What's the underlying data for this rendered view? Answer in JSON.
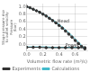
{
  "chart_data": {
    "type": "line",
    "xlabel": "Volumetric flow rate (m³/s)",
    "ylabel": "Stage pressure rise\nto outlet velocity\nPressure\n(bar)",
    "xlim": [
      0.0,
      0.75
    ],
    "ylim": [
      -0.18,
      1.08
    ],
    "xticks": [
      {
        "value": 0.0,
        "label": "0.0"
      },
      0.2,
      0.4,
      0.6
    ],
    "yticks": [
      {
        "value": 0.0,
        "label": "0.0"
      },
      0.2,
      0.4,
      0.6,
      0.8,
      {
        "value": 1.0,
        "label": "1.0"
      }
    ],
    "grid": true,
    "legend": "bottom",
    "series": [
      {
        "name": "Experiments",
        "color": "#333333",
        "marker": "circle",
        "line_style": "solid",
        "x": [
          0.0,
          0.04,
          0.08,
          0.12,
          0.16,
          0.2,
          0.24,
          0.28,
          0.32,
          0.36,
          0.4,
          0.44,
          0.48,
          0.52,
          0.56,
          0.6,
          0.64,
          0.68,
          0.72
        ],
        "values": [
          1.0,
          0.97,
          0.93,
          0.89,
          0.85,
          0.8,
          0.75,
          0.69,
          0.63,
          0.57,
          0.5,
          0.43,
          0.35,
          0.27,
          0.19,
          0.1,
          0.02,
          -0.06,
          -0.12
        ]
      },
      {
        "name": "Calculations",
        "color": "#44bbcc",
        "marker": "none",
        "line_style": "solid",
        "x": [
          0.0,
          0.08,
          0.16,
          0.24,
          0.32,
          0.4,
          0.48,
          0.56,
          0.64,
          0.72
        ],
        "values": [
          1.0,
          0.93,
          0.85,
          0.76,
          0.65,
          0.53,
          0.39,
          0.23,
          0.06,
          -0.12
        ]
      },
      {
        "name": "Experiments",
        "color": "#333333",
        "marker": "circle",
        "line_style": "solid",
        "x": [
          0.0,
          0.08,
          0.16,
          0.24,
          0.32,
          0.4,
          0.48,
          0.56,
          0.64,
          0.72
        ],
        "values": [
          -0.08,
          -0.08,
          -0.08,
          -0.09,
          -0.09,
          -0.09,
          -0.09,
          -0.09,
          -0.09,
          -0.09
        ]
      },
      {
        "name": "Calculations",
        "color": "#44bbcc",
        "marker": "none",
        "line_style": "solid",
        "x": [
          0.0,
          0.08,
          0.16,
          0.24,
          0.32,
          0.4,
          0.48,
          0.56,
          0.64,
          0.72
        ],
        "values": [
          -0.07,
          -0.07,
          -0.07,
          -0.07,
          -0.08,
          -0.08,
          -0.08,
          -0.08,
          -0.08,
          -0.08
        ]
      }
    ],
    "annotations": [
      {
        "text": "Head",
        "x": 0.38,
        "y": 0.58,
        "color": "#333333"
      },
      {
        "text": "Power",
        "x": 0.48,
        "y": -0.06,
        "color": "#333333"
      }
    ]
  }
}
